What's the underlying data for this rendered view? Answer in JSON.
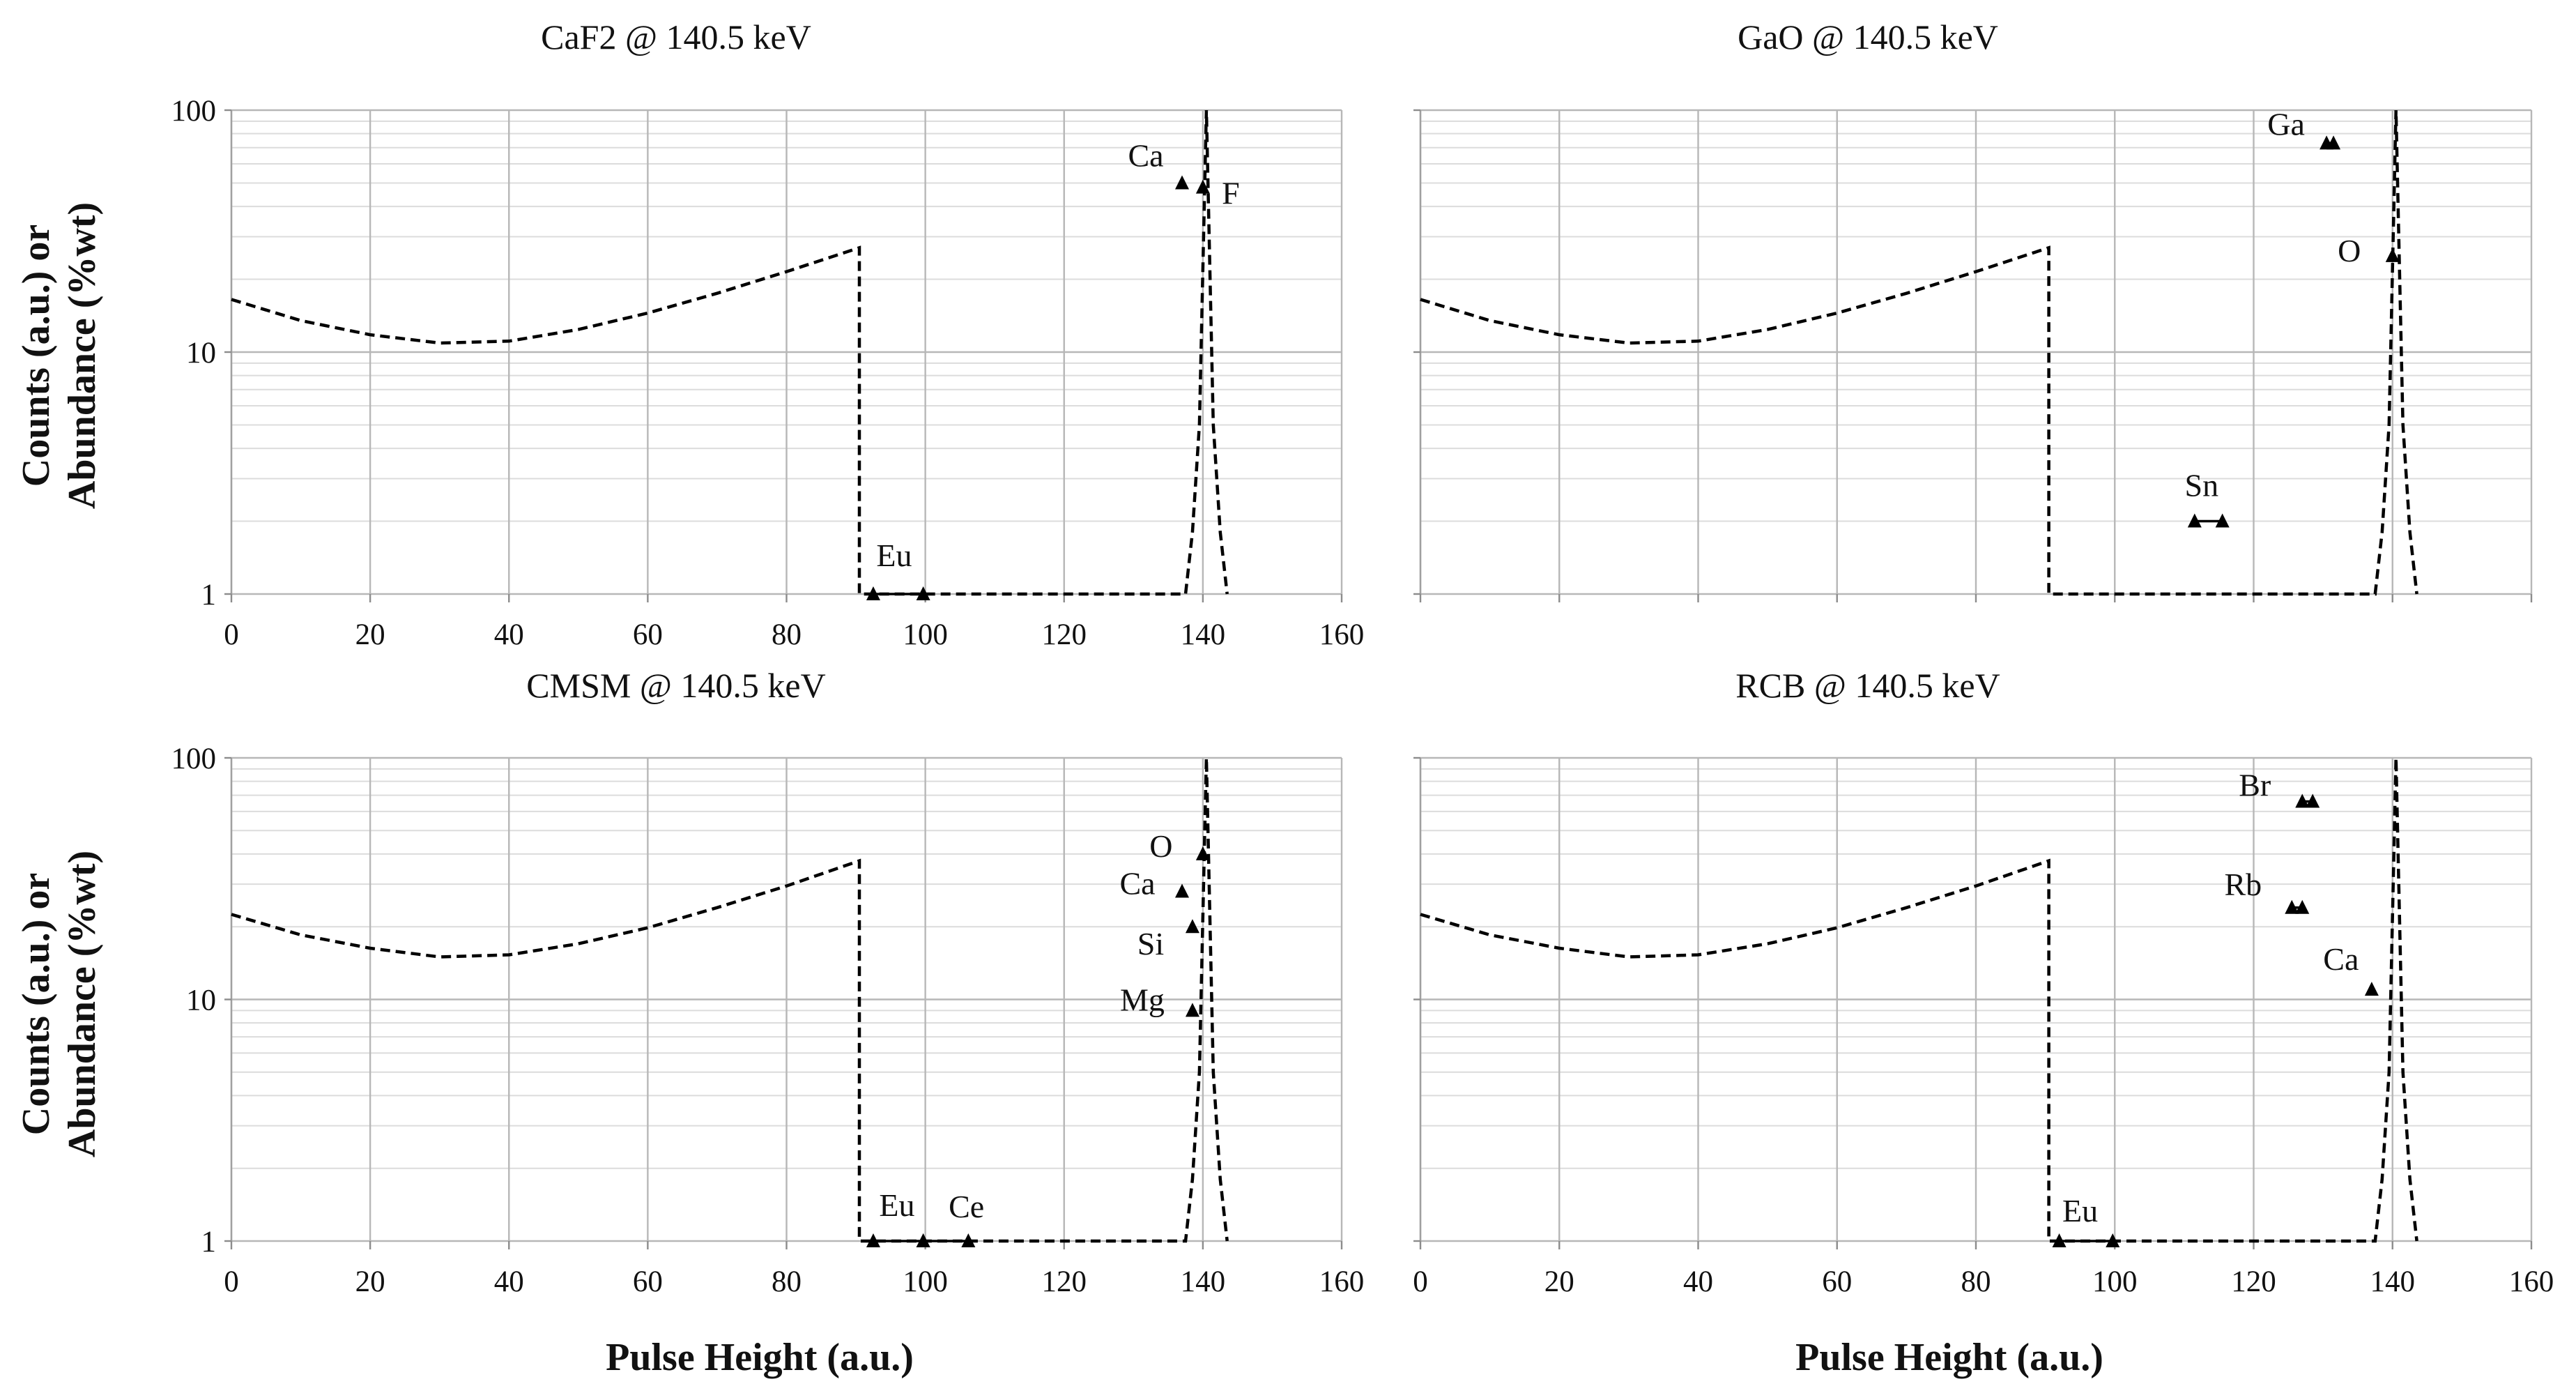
{
  "chart_data": [
    {
      "type": "line",
      "title": "CaF2 @ 140.5 keV",
      "xlabel": "",
      "ylabel": "Counts (a.u.) or Abundance (%wt)",
      "xlim": [
        0,
        160
      ],
      "ylim": [
        1,
        100
      ],
      "yscale": "log",
      "xticks": [
        "0",
        "20",
        "40",
        "60",
        "80",
        "100",
        "120",
        "140",
        "160"
      ],
      "yticks": [
        "1",
        "10",
        "100"
      ],
      "grid": true,
      "series": [
        {
          "style": "dashed",
          "x": [
            0,
            10,
            20,
            30,
            40,
            50,
            60,
            70,
            80,
            90.5,
            90.5,
            91,
            137.5,
            138.5,
            139.5,
            140.5,
            141.5,
            142.5,
            143.5
          ],
          "y": [
            16.5,
            13.5,
            11.8,
            10.9,
            11.1,
            12.4,
            14.5,
            17.5,
            21.5,
            27,
            1,
            1,
            1,
            1.8,
            5,
            100,
            5,
            1.8,
            1
          ]
        }
      ],
      "elements": [
        {
          "label": "Ca",
          "x": [
            137
          ],
          "y": 50
        },
        {
          "label": "F",
          "x": [
            140
          ],
          "y": 48
        },
        {
          "label": "Eu",
          "x": [
            92.5,
            99.7
          ],
          "y": 1
        }
      ]
    },
    {
      "type": "line",
      "title": "GaO @ 140.5 keV",
      "xlabel": "Pulse Height (a.u.)",
      "ylabel": "",
      "xlim": [
        0,
        160
      ],
      "ylim": [
        1,
        100
      ],
      "yscale": "log",
      "xticks": [],
      "yticks": [],
      "grid": true,
      "series": [
        {
          "style": "dashed",
          "x": [
            0,
            10,
            20,
            30,
            40,
            50,
            60,
            70,
            80,
            90.5,
            90.5,
            91,
            137.5,
            138.5,
            139.5,
            140.5,
            141.5,
            142.5,
            143.5
          ],
          "y": [
            16.5,
            13.5,
            11.8,
            10.9,
            11.1,
            12.4,
            14.5,
            17.5,
            21.5,
            27,
            1,
            1,
            1,
            1.8,
            5,
            100,
            5,
            1.8,
            1
          ]
        }
      ],
      "elements": [
        {
          "label": "Ga",
          "x": [
            130.5,
            131.5
          ],
          "y": 73
        },
        {
          "label": "O",
          "x": [
            140
          ],
          "y": 25
        },
        {
          "label": "Sn",
          "x": [
            111.5,
            115.5
          ],
          "y": 2
        }
      ]
    },
    {
      "type": "line",
      "title": "CMSM @ 140.5 keV",
      "xlabel": "",
      "ylabel": "Counts (a.u.) or Abundance (%wt)",
      "xlim": [
        0,
        160
      ],
      "ylim": [
        1,
        100
      ],
      "yscale": "log",
      "xticks": [
        "0",
        "20",
        "40",
        "60",
        "80",
        "100",
        "120",
        "140",
        "160"
      ],
      "yticks": [
        "1",
        "10",
        "100"
      ],
      "grid": true,
      "series": [
        {
          "style": "dashed",
          "x": [
            0,
            10,
            20,
            30,
            40,
            50,
            60,
            70,
            80,
            90.5,
            90.5,
            91,
            137.5,
            138.5,
            139.5,
            140.5,
            141.5,
            142.5,
            143.5
          ],
          "y": [
            22.5,
            18.5,
            16.3,
            15,
            15.3,
            17,
            19.8,
            24,
            29.5,
            37.5,
            1,
            1,
            1,
            1.8,
            5,
            100,
            5,
            1.8,
            1
          ]
        }
      ],
      "elements": [
        {
          "label": "O",
          "x": [
            140
          ],
          "y": 40
        },
        {
          "label": "Ca",
          "x": [
            137
          ],
          "y": 28
        },
        {
          "label": "Si",
          "x": [
            138.5
          ],
          "y": 20
        },
        {
          "label": "Mg",
          "x": [
            138.5
          ],
          "y": 9
        },
        {
          "label": "Eu",
          "x": [
            92.5,
            99.7
          ],
          "y": 1
        },
        {
          "label": "Ce",
          "x": [
            99.7,
            106.2
          ],
          "y": 1
        }
      ]
    },
    {
      "type": "line",
      "title": "RCB @ 140.5 keV",
      "xlabel": "Pulse Height (a.u.)",
      "ylabel": "",
      "xlim": [
        0,
        160
      ],
      "ylim": [
        1,
        100
      ],
      "yscale": "log",
      "xticks": [
        "0",
        "20",
        "40",
        "60",
        "80",
        "100",
        "120",
        "140",
        "160"
      ],
      "yticks": [],
      "grid": true,
      "series": [
        {
          "style": "dashed",
          "x": [
            0,
            10,
            20,
            30,
            40,
            50,
            60,
            70,
            80,
            90.5,
            90.5,
            91,
            137.5,
            138.5,
            139.5,
            140.5,
            141.5,
            142.5,
            143.5
          ],
          "y": [
            22.5,
            18.5,
            16.3,
            15,
            15.3,
            17,
            19.8,
            24,
            29.5,
            37.5,
            1,
            1,
            1,
            1.8,
            5,
            100,
            5,
            1.8,
            1
          ]
        }
      ],
      "elements": [
        {
          "label": "Br",
          "x": [
            127,
            128.5
          ],
          "y": 66
        },
        {
          "label": "Rb",
          "x": [
            125.5,
            127
          ],
          "y": 24
        },
        {
          "label": "Ca",
          "x": [
            137
          ],
          "y": 11
        },
        {
          "label": "Eu",
          "x": [
            92,
            99.7
          ],
          "y": 1
        }
      ]
    }
  ],
  "shared_xlabel_left": "Pulse Height (a.u.)",
  "ylabel_lines": [
    "Counts (a.u.) or",
    "Abundance (%wt)"
  ]
}
